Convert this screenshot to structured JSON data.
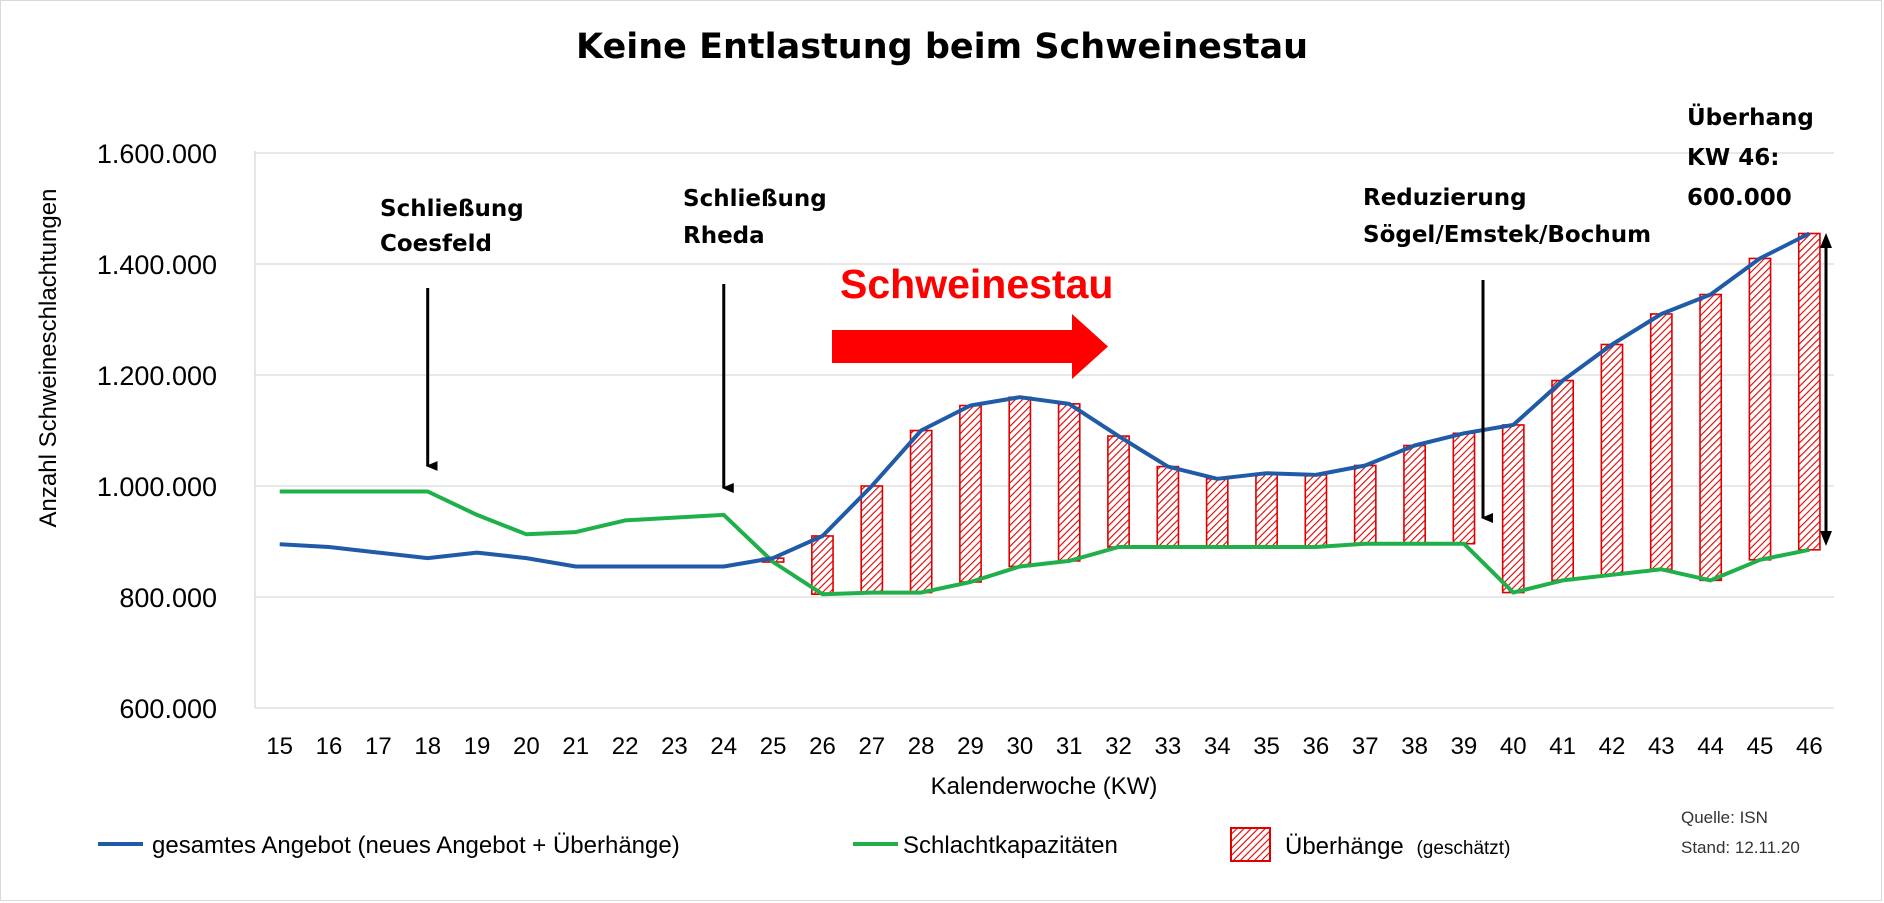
{
  "chart_data": {
    "type": "line",
    "title": "Keine Entlastung beim Schweinestau",
    "xlabel": "Kalenderwoche (KW)",
    "ylabel": "Anzahl Schweineschlachtungen",
    "ylim": [
      600000,
      1600000
    ],
    "yticks": [
      600000,
      800000,
      1000000,
      1200000,
      1400000,
      1600000
    ],
    "ytick_labels": [
      "600.000",
      "800.000",
      "1.000.000",
      "1.200.000",
      "1.400.000",
      "1.600.000"
    ],
    "grid": true,
    "categories": [
      "15",
      "16",
      "17",
      "18",
      "19",
      "20",
      "21",
      "22",
      "23",
      "24",
      "25",
      "26",
      "27",
      "28",
      "29",
      "30",
      "31",
      "32",
      "33",
      "34",
      "35",
      "36",
      "37",
      "38",
      "39",
      "40",
      "41",
      "42",
      "43",
      "44",
      "45",
      "46"
    ],
    "series": [
      {
        "name": "gesamtes Angebot (neues Angebot + Überhänge)",
        "color": "#1f5ba6",
        "values": [
          895000,
          890000,
          880000,
          870000,
          880000,
          870000,
          855000,
          855000,
          855000,
          855000,
          870000,
          910000,
          1000000,
          1100000,
          1145000,
          1160000,
          1148000,
          1090000,
          1035000,
          1013000,
          1023000,
          1020000,
          1037000,
          1073000,
          1095000,
          1110000,
          1190000,
          1255000,
          1310000,
          1345000,
          1410000,
          1455000
        ]
      },
      {
        "name": "Schlachtkapazitäten",
        "color": "#1fb04a",
        "values": [
          990000,
          990000,
          990000,
          990000,
          948000,
          913000,
          917000,
          938000,
          943000,
          948000,
          863000,
          805000,
          808000,
          808000,
          827000,
          855000,
          865000,
          890000,
          890000,
          890000,
          890000,
          890000,
          896000,
          896000,
          896000,
          808000,
          830000,
          840000,
          850000,
          830000,
          867000,
          885000
        ]
      },
      {
        "name": "Überhänge",
        "name_note": "(geschätzt)",
        "color": "#e00000",
        "type": "range-bar",
        "range": [
          10,
          31
        ]
      }
    ],
    "annotations": [
      {
        "id": "coesfeld",
        "line1": "Schließung",
        "line2": "Coesfeld",
        "week": "18"
      },
      {
        "id": "rheda",
        "line1": "Schließung",
        "line2": "Rheda",
        "week": "24"
      },
      {
        "id": "reduz",
        "line1": "Reduzierung",
        "line2": "Sögel/Emstek/Bochum",
        "week": "39"
      },
      {
        "id": "ueberhang",
        "line1": "Überhang",
        "line2": "KW 46:",
        "line3": "600.000",
        "week": "46"
      },
      {
        "id": "stau",
        "text": "Schweinestau",
        "color": "#ff0000"
      }
    ],
    "source": "Quelle: ISN",
    "date": "Stand: 12.11.20"
  }
}
